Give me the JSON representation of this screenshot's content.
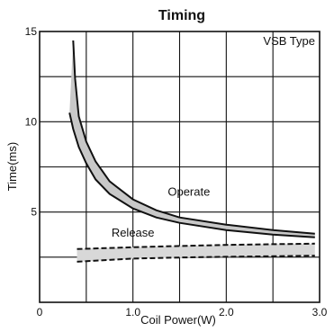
{
  "chart_data": {
    "type": "line",
    "title": "Timing",
    "annotation": "VSB Type",
    "xlabel": "Coil Power(W)",
    "ylabel": "Time(ms)",
    "xlim": [
      0,
      3.0
    ],
    "ylim": [
      0,
      15
    ],
    "x_ticks": [
      {
        "value": 0,
        "label": "0"
      },
      {
        "value": 1.0,
        "label": "1.0"
      },
      {
        "value": 2.0,
        "label": "2.0"
      },
      {
        "value": 3.0,
        "label": "3.0"
      }
    ],
    "y_ticks": [
      {
        "value": 5,
        "label": "5"
      },
      {
        "value": 10,
        "label": "10"
      },
      {
        "value": 15,
        "label": "15"
      }
    ],
    "grid": true,
    "grid_step_x": 0.5,
    "grid_step_y": 2.5,
    "series": [
      {
        "name": "Operate",
        "style": "solid",
        "band_fill": "#c8c8c8",
        "upper": {
          "x": [
            0.36,
            0.38,
            0.42,
            0.5,
            0.6,
            0.75,
            1.0,
            1.25,
            1.5,
            2.0,
            2.5,
            2.95
          ],
          "y": [
            14.5,
            12.4,
            10.3,
            8.9,
            7.8,
            6.7,
            5.7,
            5.1,
            4.7,
            4.3,
            4.0,
            3.8
          ]
        },
        "lower": {
          "x": [
            0.32,
            0.36,
            0.42,
            0.5,
            0.6,
            0.75,
            1.0,
            1.25,
            1.5,
            2.0,
            2.5,
            2.95
          ],
          "y": [
            10.5,
            9.6,
            8.6,
            7.7,
            6.8,
            6.0,
            5.2,
            4.7,
            4.4,
            4.0,
            3.75,
            3.6
          ]
        }
      },
      {
        "name": "Release",
        "style": "dashed",
        "band_fill": "#d8d8d8",
        "upper": {
          "x": [
            0.4,
            1.0,
            1.5,
            2.0,
            2.5,
            2.95
          ],
          "y": [
            2.95,
            3.05,
            3.12,
            3.18,
            3.22,
            3.25
          ]
        },
        "lower": {
          "x": [
            0.4,
            1.0,
            1.5,
            2.0,
            2.5,
            2.95
          ],
          "y": [
            2.25,
            2.42,
            2.48,
            2.52,
            2.55,
            2.58
          ]
        }
      }
    ],
    "series_labels": [
      {
        "series": 0,
        "text": "Operate",
        "x": 1.6,
        "y": 5.9
      },
      {
        "series": 1,
        "text": "Release",
        "x": 1.0,
        "y": 3.65
      }
    ],
    "colors": {
      "line": "#111111",
      "grid": "#111111",
      "background": "#ffffff"
    }
  }
}
